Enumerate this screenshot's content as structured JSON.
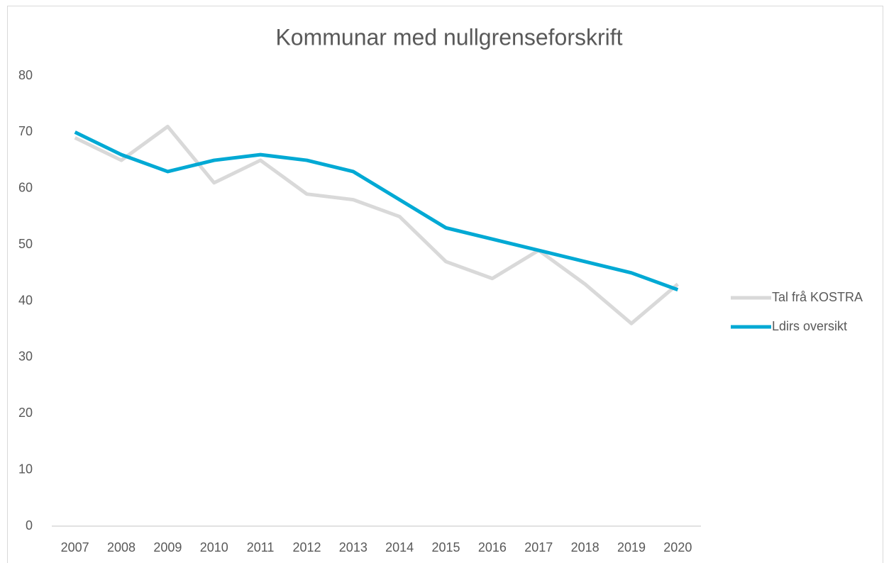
{
  "chart_data": {
    "type": "line",
    "title": "Kommunar med nullgrenseforskrift",
    "categories": [
      "2007",
      "2008",
      "2009",
      "2010",
      "2011",
      "2012",
      "2013",
      "2014",
      "2015",
      "2016",
      "2017",
      "2018",
      "2019",
      "2020"
    ],
    "series": [
      {
        "name": "Tal frå KOSTRA",
        "color": "#d9d9d9",
        "values": [
          69,
          65,
          71,
          61,
          65,
          59,
          58,
          55,
          47,
          44,
          49,
          43,
          36,
          43
        ]
      },
      {
        "name": "Ldirs oversikt",
        "color": "#00a9d4",
        "values": [
          70,
          66,
          63,
          65,
          66,
          65,
          63,
          58,
          53,
          51,
          49,
          47,
          45,
          42
        ]
      }
    ],
    "ylim": [
      0,
      80
    ],
    "yticks": [
      0,
      10,
      20,
      30,
      40,
      50,
      60,
      70,
      80
    ],
    "grid": false,
    "legend": "right"
  }
}
